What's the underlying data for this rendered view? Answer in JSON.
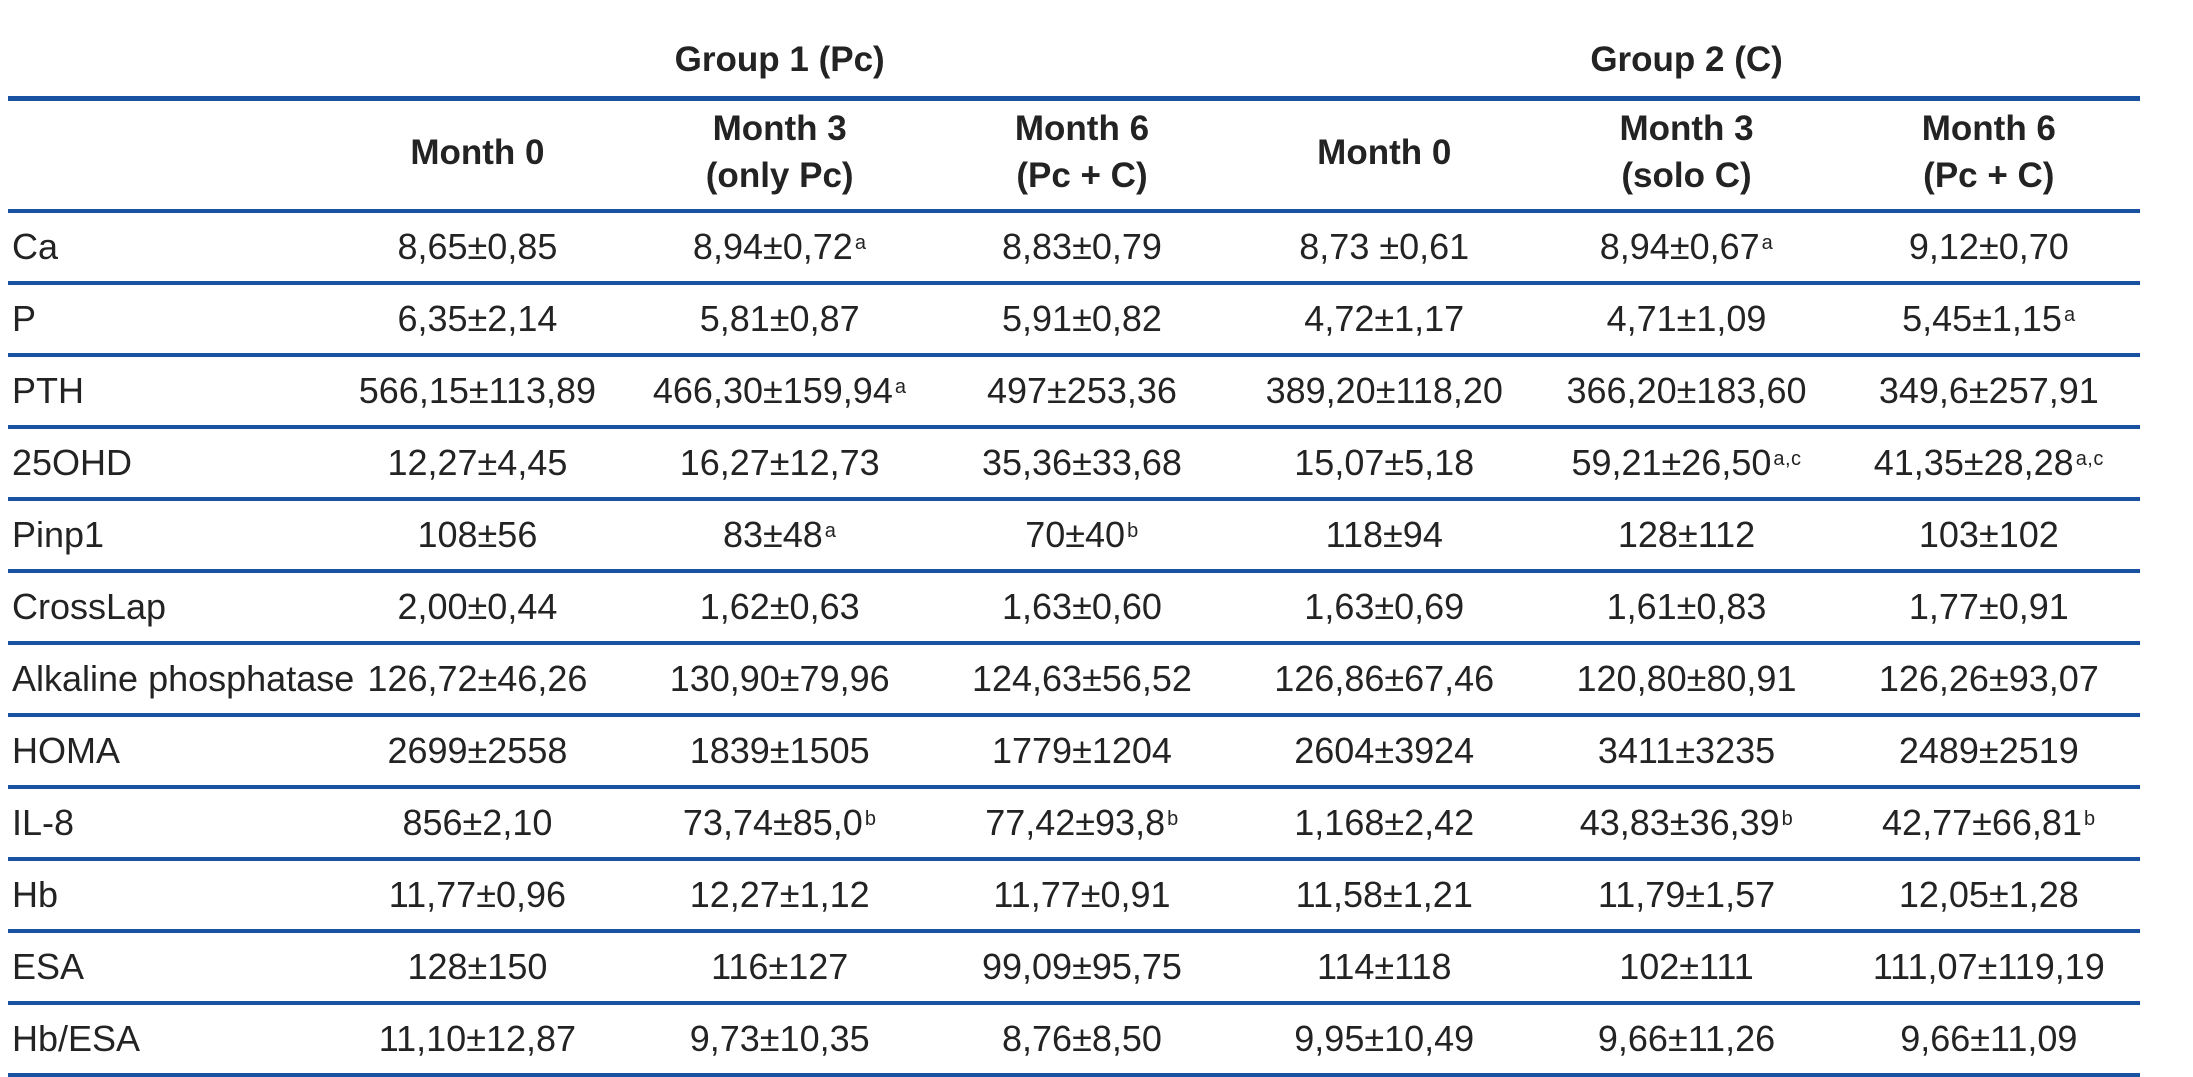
{
  "colors": {
    "line_blue": "#1a52a2",
    "text": "#232323"
  },
  "table": {
    "corner_label": "",
    "group_headers": [
      {
        "label": "Group 1 (Pc)"
      },
      {
        "label": "Group 2 (C)"
      }
    ],
    "column_headers": [
      {
        "line1": "Month 0",
        "line2": ""
      },
      {
        "line1": "Month 3",
        "line2": "(only Pc)"
      },
      {
        "line1": "Month 6",
        "line2": "(Pc + C)"
      },
      {
        "line1": "Month 0",
        "line2": ""
      },
      {
        "line1": "Month 3",
        "line2": "(solo C)"
      },
      {
        "line1": "Month 6",
        "line2": "(Pc + C)"
      }
    ],
    "rows": [
      {
        "label": "Ca",
        "cells": [
          {
            "v": "8,65±0,85",
            "sup": ""
          },
          {
            "v": "8,94±0,72",
            "sup": "a"
          },
          {
            "v": "8,83±0,79",
            "sup": ""
          },
          {
            "v": "8,73 ±0,61",
            "sup": ""
          },
          {
            "v": "8,94±0,67",
            "sup": "a"
          },
          {
            "v": "9,12±0,70",
            "sup": ""
          }
        ]
      },
      {
        "label": "P",
        "cells": [
          {
            "v": "6,35±2,14",
            "sup": ""
          },
          {
            "v": "5,81±0,87",
            "sup": ""
          },
          {
            "v": "5,91±0,82",
            "sup": ""
          },
          {
            "v": "4,72±1,17",
            "sup": ""
          },
          {
            "v": "4,71±1,09",
            "sup": ""
          },
          {
            "v": "5,45±1,15",
            "sup": "a"
          }
        ]
      },
      {
        "label": "PTH",
        "cells": [
          {
            "v": "566,15±113,89",
            "sup": ""
          },
          {
            "v": "466,30±159,94",
            "sup": "a"
          },
          {
            "v": "497±253,36",
            "sup": ""
          },
          {
            "v": "389,20±118,20",
            "sup": ""
          },
          {
            "v": "366,20±183,60",
            "sup": ""
          },
          {
            "v": "349,6±257,91",
            "sup": ""
          }
        ]
      },
      {
        "label": "25OHD",
        "cells": [
          {
            "v": "12,27±4,45",
            "sup": ""
          },
          {
            "v": "16,27±12,73",
            "sup": ""
          },
          {
            "v": "35,36±33,68",
            "sup": ""
          },
          {
            "v": "15,07±5,18",
            "sup": ""
          },
          {
            "v": "59,21±26,50",
            "sup": "a,c"
          },
          {
            "v": "41,35±28,28",
            "sup": "a,c"
          }
        ]
      },
      {
        "label": "Pinp1",
        "cells": [
          {
            "v": "108±56",
            "sup": ""
          },
          {
            "v": "83±48",
            "sup": "a"
          },
          {
            "v": "70±40",
            "sup": "b"
          },
          {
            "v": "118±94",
            "sup": ""
          },
          {
            "v": "128±112",
            "sup": ""
          },
          {
            "v": "103±102",
            "sup": ""
          }
        ]
      },
      {
        "label": "CrossLap",
        "cells": [
          {
            "v": "2,00±0,44",
            "sup": ""
          },
          {
            "v": "1,62±0,63",
            "sup": ""
          },
          {
            "v": "1,63±0,60",
            "sup": ""
          },
          {
            "v": "1,63±0,69",
            "sup": ""
          },
          {
            "v": "1,61±0,83",
            "sup": ""
          },
          {
            "v": "1,77±0,91",
            "sup": ""
          }
        ]
      },
      {
        "label": "Alkaline phosphatase",
        "cells": [
          {
            "v": "126,72±46,26",
            "sup": ""
          },
          {
            "v": "130,90±79,96",
            "sup": ""
          },
          {
            "v": "124,63±56,52",
            "sup": ""
          },
          {
            "v": "126,86±67,46",
            "sup": ""
          },
          {
            "v": "120,80±80,91",
            "sup": ""
          },
          {
            "v": "126,26±93,07",
            "sup": ""
          }
        ]
      },
      {
        "label": "HOMA",
        "cells": [
          {
            "v": "2699±2558",
            "sup": ""
          },
          {
            "v": "1839±1505",
            "sup": ""
          },
          {
            "v": "1779±1204",
            "sup": ""
          },
          {
            "v": "2604±3924",
            "sup": ""
          },
          {
            "v": "3411±3235",
            "sup": ""
          },
          {
            "v": "2489±2519",
            "sup": ""
          }
        ]
      },
      {
        "label": "IL-8",
        "cells": [
          {
            "v": "856±2,10",
            "sup": ""
          },
          {
            "v": "73,74±85,0",
            "sup": "b"
          },
          {
            "v": "77,42±93,8",
            "sup": "b"
          },
          {
            "v": "1,168±2,42",
            "sup": ""
          },
          {
            "v": "43,83±36,39",
            "sup": "b"
          },
          {
            "v": "42,77±66,81",
            "sup": "b"
          }
        ]
      },
      {
        "label": "Hb",
        "cells": [
          {
            "v": "11,77±0,96",
            "sup": ""
          },
          {
            "v": "12,27±1,12",
            "sup": ""
          },
          {
            "v": "11,77±0,91",
            "sup": ""
          },
          {
            "v": "11,58±1,21",
            "sup": ""
          },
          {
            "v": "11,79±1,57",
            "sup": ""
          },
          {
            "v": "12,05±1,28",
            "sup": ""
          }
        ]
      },
      {
        "label": "ESA",
        "cells": [
          {
            "v": "128±150",
            "sup": ""
          },
          {
            "v": "116±127",
            "sup": ""
          },
          {
            "v": "99,09±95,75",
            "sup": ""
          },
          {
            "v": "114±118",
            "sup": ""
          },
          {
            "v": "102±111",
            "sup": ""
          },
          {
            "v": "111,07±119,19",
            "sup": ""
          }
        ]
      },
      {
        "label": "Hb/ESA",
        "cells": [
          {
            "v": "11,10±12,87",
            "sup": ""
          },
          {
            "v": "9,73±10,35",
            "sup": ""
          },
          {
            "v": "8,76±8,50",
            "sup": ""
          },
          {
            "v": "9,95±10,49",
            "sup": ""
          },
          {
            "v": "9,66±11,26",
            "sup": ""
          },
          {
            "v": "9,66±11,09",
            "sup": ""
          }
        ]
      }
    ]
  }
}
